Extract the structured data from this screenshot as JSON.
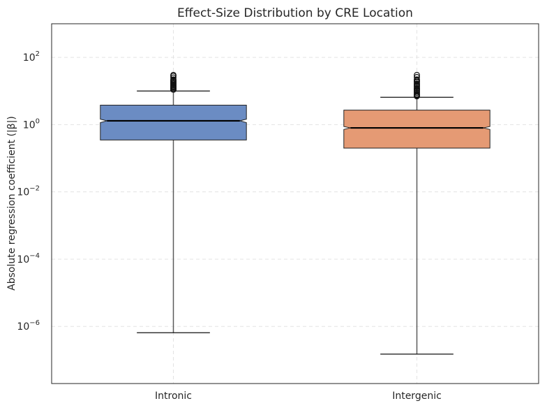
{
  "chart_data": {
    "type": "box",
    "title": "Effect-Size Distribution by CRE Location",
    "xlabel": "",
    "ylabel": "Absolute regression coefficient (|β|)",
    "yscale": "log",
    "ylim": [
      2e-08,
      1000
    ],
    "yticks": [
      {
        "value": 100,
        "base": "10",
        "exp": "2"
      },
      {
        "value": 1,
        "base": "10",
        "exp": "0"
      },
      {
        "value": 0.01,
        "base": "10",
        "exp": "−2"
      },
      {
        "value": 0.0001,
        "base": "10",
        "exp": "−4"
      },
      {
        "value": 1e-06,
        "base": "10",
        "exp": "−6"
      }
    ],
    "grid": true,
    "notched": true,
    "categories": [
      "Intronic",
      "Intergenic"
    ],
    "series": [
      {
        "category": "Intronic",
        "color": "#6b8cc3",
        "whisker_low": 6.5e-07,
        "q1": 0.35,
        "median": 1.3,
        "q3": 3.8,
        "whisker_high": 10,
        "notch_low": 1.15,
        "notch_high": 1.45,
        "outlier_range": [
          10,
          30
        ],
        "outliers": [
          11,
          12,
          13,
          14,
          15,
          16.5,
          18,
          20,
          22,
          25,
          28,
          30
        ]
      },
      {
        "category": "Intergenic",
        "color": "#e59a74",
        "whisker_low": 1.5e-07,
        "q1": 0.2,
        "median": 0.8,
        "q3": 2.7,
        "whisker_high": 6.5,
        "notch_low": 0.72,
        "notch_high": 0.88,
        "outlier_range": [
          6.5,
          30
        ],
        "outliers": [
          7,
          7.5,
          8,
          9,
          10,
          11,
          12,
          14,
          16,
          19,
          22,
          26,
          30
        ]
      }
    ]
  }
}
